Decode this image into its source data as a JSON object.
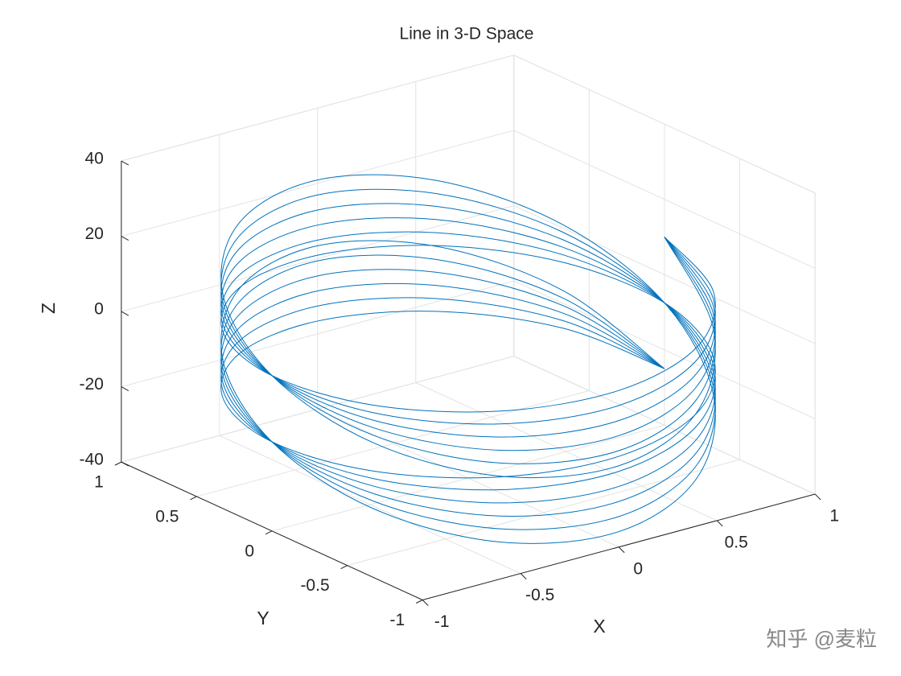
{
  "chart_data": {
    "type": "line3d",
    "title": "Line in 3-D Space",
    "xlabel": "X",
    "ylabel": "Y",
    "zlabel": "Z",
    "watermark": "知乎 @麦粒",
    "x": [
      1,
      0.866,
      0.5,
      0,
      -0.5,
      -0.866,
      -1,
      -0.866,
      -0.5,
      0,
      0.5,
      0.866,
      1,
      0.866,
      0.5,
      0,
      -0.5,
      -0.866,
      -1,
      -0.866,
      -0.5,
      0,
      0.5,
      0.866,
      1
    ],
    "y": [
      0,
      0.5,
      0.866,
      1,
      0.866,
      0.5,
      0,
      -0.5,
      -0.866,
      -1,
      -0.866,
      -0.5,
      0,
      0.5,
      0.866,
      1,
      0.866,
      0.5,
      0,
      -0.5,
      -0.866,
      -1,
      -0.866,
      -0.5,
      0
    ],
    "series": [
      {
        "color": "#0072bd",
        "values": [
          -25,
          -21.5,
          -18.6,
          -16.6,
          -15.7,
          -15.7,
          -16.3,
          -16.8,
          -16.8,
          -15.9,
          -13.9,
          -11,
          -7.5,
          -4,
          -1.1,
          0.9,
          1.8,
          1.8,
          1.3,
          0.7,
          0.7,
          1.6,
          3.6,
          6.5,
          10
        ]
      },
      {
        "color": "#0072bd",
        "values": [
          -25,
          -19.5,
          -15.2,
          -12.6,
          -12.3,
          -13.7,
          -16.3,
          -18.8,
          -20.2,
          -19.9,
          -17.3,
          -13,
          -7.5,
          -2,
          2.3,
          4.9,
          5.2,
          3.8,
          1.3,
          -1.3,
          -2.7,
          -2.4,
          0.2,
          4.5,
          10
        ]
      },
      {
        "color": "#0072bd",
        "values": [
          -25,
          -17.5,
          -11.7,
          -8.6,
          -8.8,
          -11.7,
          -16.3,
          -20.8,
          -23.7,
          -23.9,
          -20.8,
          -15,
          -7.5,
          0,
          5.8,
          8.9,
          8.7,
          5.8,
          1.3,
          -3.3,
          -6.2,
          -6.4,
          -3.3,
          2.5,
          10
        ]
      },
      {
        "color": "#0072bd",
        "values": [
          -25,
          -15.5,
          -8.2,
          -4.6,
          -5.3,
          -9.7,
          -16.3,
          -22.8,
          -27.2,
          -27.9,
          -24.3,
          -17,
          -7.5,
          2,
          9.3,
          12.9,
          12.2,
          7.8,
          1.3,
          -5.3,
          -9.7,
          -10.4,
          -6.8,
          0.5,
          10
        ]
      },
      {
        "color": "#0072bd",
        "values": [
          -25,
          -13.5,
          -4.8,
          -0.6,
          -1.9,
          -7.7,
          -16.3,
          -24.8,
          -30.6,
          -31.9,
          -27.7,
          -19,
          -7.5,
          4,
          12.7,
          16.9,
          15.6,
          9.8,
          1.3,
          -7.3,
          -13.1,
          -14.4,
          -10.2,
          -1.5,
          10
        ]
      },
      {
        "color": "#0072bd",
        "values": [
          -25,
          -11.5,
          -1.3,
          3.4,
          1.6,
          -5.7,
          -16.3,
          -26.8,
          -34.1,
          -35.9,
          -31.2,
          -21,
          -7.5,
          6,
          16.2,
          20.9,
          19.1,
          11.8,
          1.3,
          -9.3,
          -16.6,
          -18.4,
          -13.7,
          -3.5,
          10
        ]
      }
    ],
    "xlim": [
      -1,
      1
    ],
    "ylim": [
      -1,
      1
    ],
    "zlim": [
      -40,
      40
    ],
    "xticks": [
      -1,
      -0.5,
      0,
      0.5,
      1
    ],
    "yticks": [
      -1,
      -0.5,
      0,
      0.5,
      1
    ],
    "zticks": [
      -40,
      -20,
      0,
      20,
      40
    ],
    "grid": true
  }
}
